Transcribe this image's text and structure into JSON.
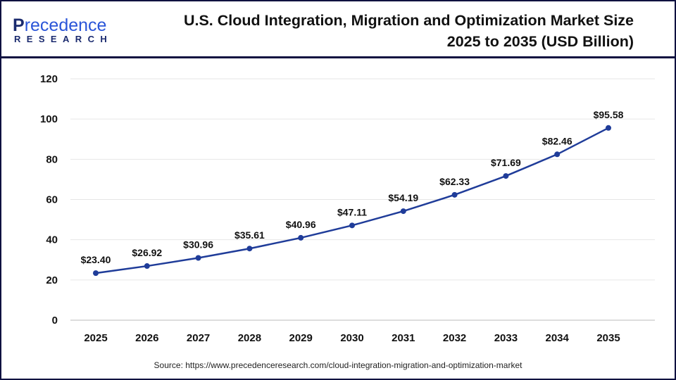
{
  "logo": {
    "text_top": "Precedence",
    "text_bottom": "RESEARCH"
  },
  "source": "Source: https://www.precedenceresearch.com/cloud-integration-migration-and-optimization-market",
  "chart_data": {
    "type": "line",
    "title": "U.S. Cloud Integration, Migration and Optimization Market Size 2025 to 2035 (USD Billion)",
    "xlabel": "",
    "ylabel": "",
    "categories": [
      "2025",
      "2026",
      "2027",
      "2028",
      "2029",
      "2030",
      "2031",
      "2032",
      "2033",
      "2034",
      "2035"
    ],
    "values": [
      23.4,
      26.92,
      30.96,
      35.61,
      40.96,
      47.11,
      54.19,
      62.33,
      71.69,
      82.46,
      95.58
    ],
    "data_labels": [
      "$23.40",
      "$26.92",
      "$30.96",
      "$35.61",
      "$40.96",
      "$47.11",
      "$54.19",
      "$62.33",
      "$71.69",
      "$82.46",
      "$95.58"
    ],
    "ylim": [
      0,
      120
    ],
    "yticks": [
      "0",
      "20",
      "40",
      "60",
      "80",
      "100",
      "120"
    ],
    "grid": true,
    "line_color": "#1f3c99"
  }
}
